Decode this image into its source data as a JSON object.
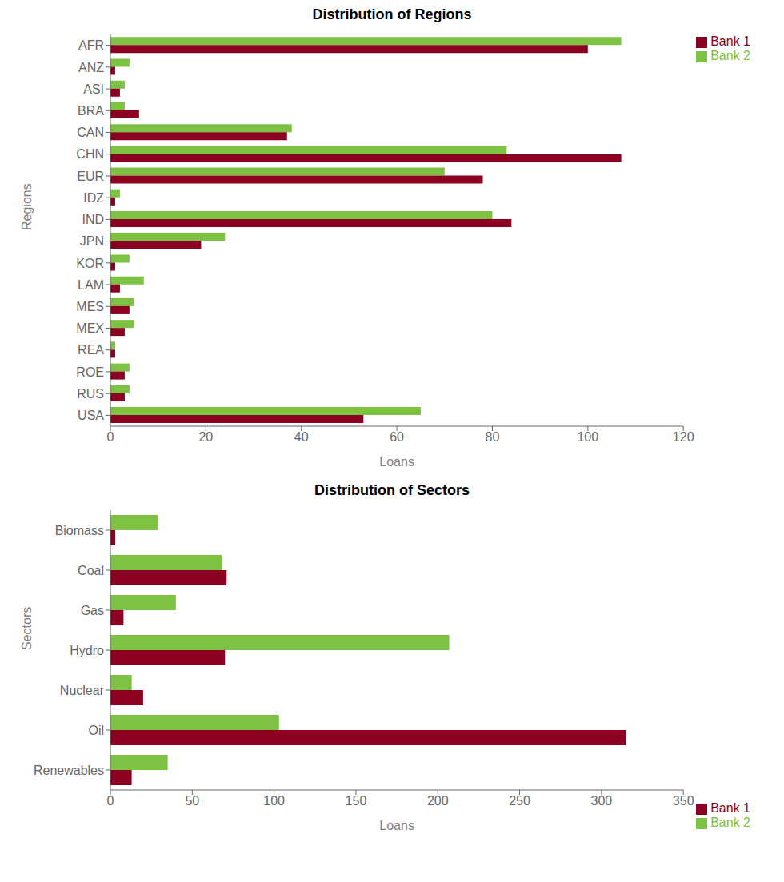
{
  "chart_data": [
    {
      "type": "bar",
      "orientation": "horizontal",
      "title": "Distribution of Regions",
      "xlabel": "Loans",
      "ylabel": "Regions",
      "categories": [
        "AFR",
        "ANZ",
        "ASI",
        "BRA",
        "CAN",
        "CHN",
        "EUR",
        "IDZ",
        "IND",
        "JPN",
        "KOR",
        "LAM",
        "MES",
        "MEX",
        "REA",
        "ROE",
        "RUS",
        "USA"
      ],
      "series": [
        {
          "name": "Bank 2",
          "color": "#7dc242",
          "values": [
            107,
            4,
            3,
            3,
            38,
            83,
            70,
            2,
            80,
            24,
            4,
            7,
            5,
            5,
            1,
            4,
            4,
            65
          ]
        },
        {
          "name": "Bank 1",
          "color": "#8b0020",
          "values": [
            100,
            1,
            2,
            6,
            37,
            107,
            78,
            1,
            84,
            19,
            1,
            2,
            4,
            3,
            1,
            3,
            3,
            53
          ]
        }
      ],
      "xlim": [
        0,
        120
      ],
      "xticks": [
        0,
        20,
        40,
        60,
        80,
        100,
        120
      ],
      "grid": false,
      "legend": "upper right"
    },
    {
      "type": "bar",
      "orientation": "horizontal",
      "title": "Distribution of Sectors",
      "xlabel": "Loans",
      "ylabel": "Sectors",
      "categories": [
        "Biomass",
        "Coal",
        "Gas",
        "Hydro",
        "Nuclear",
        "Oil",
        "Renewables"
      ],
      "series": [
        {
          "name": "Bank 2",
          "color": "#7dc242",
          "values": [
            29,
            68,
            40,
            207,
            13,
            103,
            35
          ]
        },
        {
          "name": "Bank 1",
          "color": "#8b0020",
          "values": [
            3,
            71,
            8,
            70,
            20,
            315,
            13
          ]
        }
      ],
      "xlim": [
        0,
        350
      ],
      "xticks": [
        0,
        50,
        100,
        150,
        200,
        250,
        300,
        350
      ],
      "grid": false,
      "legend": "lower right"
    }
  ]
}
